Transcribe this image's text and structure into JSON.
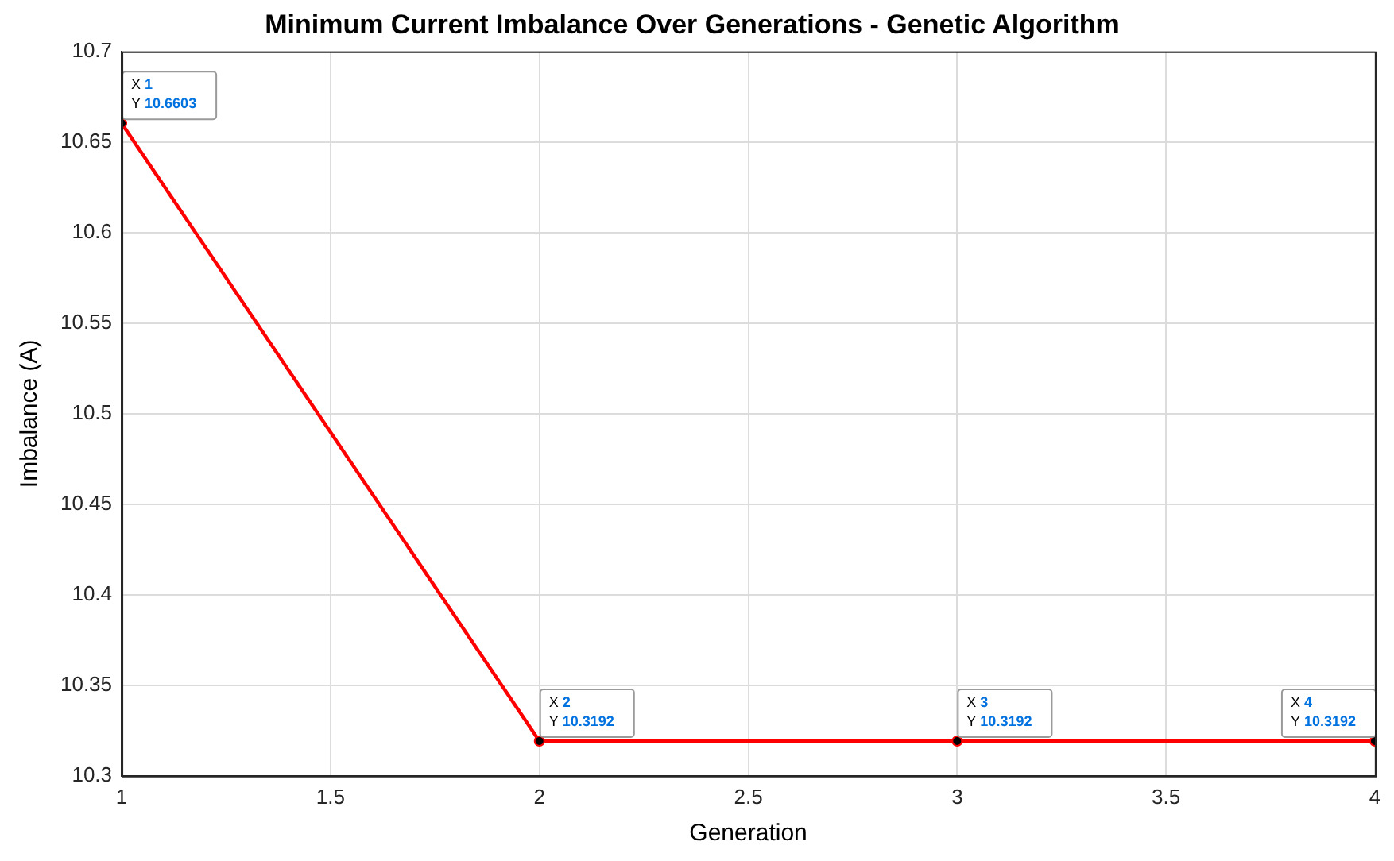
{
  "chart_data": {
    "type": "line",
    "title": "Minimum Current Imbalance Over Generations - Genetic Algorithm",
    "xlabel": "Generation",
    "ylabel": "Imbalance (A)",
    "x": [
      1,
      2,
      3,
      4
    ],
    "series": [
      {
        "color": "#ff0000",
        "values": [
          10.6603,
          10.3192,
          10.3192,
          10.3192
        ]
      }
    ],
    "xlim": [
      1,
      4
    ],
    "xticks": [
      1,
      1.5,
      2,
      2.5,
      3,
      3.5,
      4
    ],
    "ylim": [
      10.3,
      10.7
    ],
    "yticks": [
      10.3,
      10.35,
      10.4,
      10.45,
      10.5,
      10.55,
      10.6,
      10.65,
      10.7
    ],
    "annotations": [
      {
        "text": "X 1\nY 10.6603",
        "x": 1,
        "y": 10.6603
      },
      {
        "text": "X 2\nY 10.3192",
        "x": 2,
        "y": 10.3192
      },
      {
        "text": "X 3\nY 10.3192",
        "x": 3,
        "y": 10.3192
      },
      {
        "text": "X 4\nY 10.3192",
        "x": 4,
        "y": 10.3192
      }
    ],
    "grid": true,
    "legend": false,
    "marker": "circle",
    "line_style": "solid"
  }
}
